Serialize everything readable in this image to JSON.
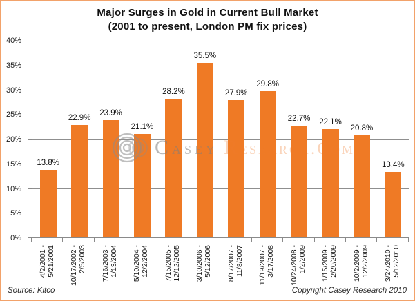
{
  "frame": {
    "border_color": "#f2a26a",
    "background_color": "#ffffff"
  },
  "watermark": {
    "logo": "concentric-circles",
    "text_primary": "Casey",
    "text_secondary": "Research.Com"
  },
  "footer": {
    "source": "Source: Kitco",
    "copyright": "Copyright Casey Research 2010"
  },
  "chart_data": {
    "type": "bar",
    "title": "Major Surges in Gold in Current Bull Market",
    "subtitle": "(2001 to present, London PM fix prices)",
    "categories": [
      [
        "4/2/2001 -",
        "5/21/2001"
      ],
      [
        "10/17/2002 -",
        "2/5/2003"
      ],
      [
        "7/16/2003 -",
        "1/13/2004"
      ],
      [
        "5/10/2004 -",
        "12/2/2004"
      ],
      [
        "7/15/2005 -",
        "12/12/2005"
      ],
      [
        "3/10/2006 -",
        "5/12/2006"
      ],
      [
        "8/17/2007 -",
        "11/8/2007"
      ],
      [
        "11/19/2007 -",
        "3/17/2008"
      ],
      [
        "10/24/2008 -",
        "1/2/2009"
      ],
      [
        "1/15/2009 -",
        "2/20/2009"
      ],
      [
        "10/2/2009 -",
        "12/2/2009"
      ],
      [
        "3/24/2010 -",
        "5/12/2010"
      ]
    ],
    "values": [
      13.8,
      22.9,
      23.9,
      21.1,
      28.2,
      35.5,
      27.9,
      29.8,
      22.7,
      22.1,
      20.8,
      13.4
    ],
    "value_labels": [
      "13.8%",
      "22.9%",
      "23.9%",
      "21.1%",
      "28.2%",
      "35.5%",
      "27.9%",
      "29.8%",
      "22.7%",
      "22.1%",
      "20.8%",
      "13.4%"
    ],
    "xlabel": "",
    "ylabel": "",
    "ylim": [
      0,
      40
    ],
    "ytick_step": 5,
    "ytick_labels": [
      "0%",
      "5%",
      "10%",
      "15%",
      "20%",
      "25%",
      "30%",
      "35%",
      "40%"
    ],
    "grid": true,
    "legend": "none",
    "bar_color": "#ef7a25",
    "gridline_color": "#8f8f8f",
    "axis_color": "#8a8a8a"
  }
}
